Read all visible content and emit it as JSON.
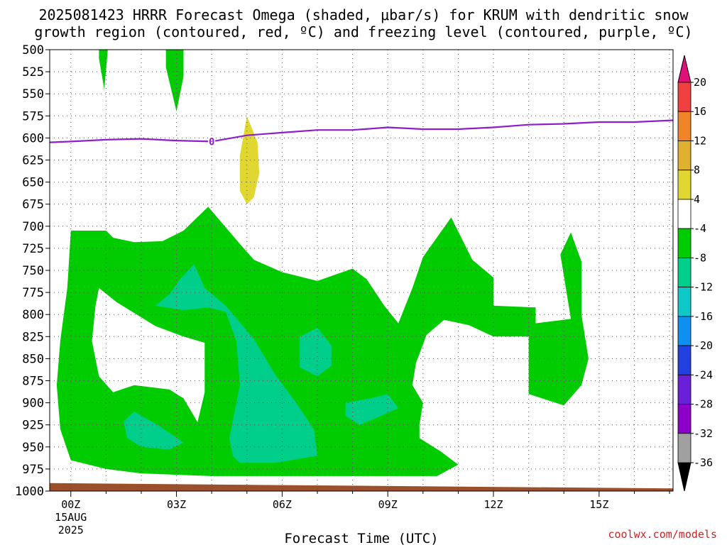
{
  "title": {
    "line1": "2025081423 HRRR Forecast Omega (shaded, μbar/s) for KRUM with dendritic snow",
    "line2": "growth region (contoured, red, ºC) and freezing level (contoured, purple, ºC)"
  },
  "credit": "coolwx.com/models",
  "colors": {
    "ground": "#9b4f2a",
    "freezing_line": "#8e1ec8",
    "green": "#00cc00",
    "teal": "#00cf8c",
    "yellow": "#e0d830"
  },
  "chart_data": {
    "type": "heatmap",
    "title": "2025081423 HRRR Forecast Omega (shaded, μbar/s) for KRUM with dendritic snow growth region (contoured, red, ºC) and freezing level (contoured, purple, ºC)",
    "xlabel": "Forecast Time (UTC)",
    "ylabel": "",
    "x_range_hours": [
      -0.6,
      17.1
    ],
    "y_range_mb": [
      500,
      1000
    ],
    "y_ticks": [
      500,
      525,
      550,
      575,
      600,
      625,
      650,
      675,
      700,
      725,
      750,
      775,
      800,
      825,
      850,
      875,
      900,
      925,
      950,
      975,
      1000
    ],
    "x_ticks": [
      {
        "hour": 0,
        "label": "00Z",
        "sub1": "15AUG",
        "sub2": "2025"
      },
      {
        "hour": 3,
        "label": "03Z"
      },
      {
        "hour": 6,
        "label": "06Z"
      },
      {
        "hour": 9,
        "label": "09Z"
      },
      {
        "hour": 12,
        "label": "12Z"
      },
      {
        "hour": 15,
        "label": "15Z"
      }
    ],
    "grid": true,
    "colorbar": {
      "colors": [
        "#a0a0a0",
        "#8c00c8",
        "#6a1fd8",
        "#2340e0",
        "#0f8ff0",
        "#10c8c8",
        "#00cf8c",
        "#00cc00",
        "#ffffff",
        "#e0d830",
        "#e0b030",
        "#f08428",
        "#f04040"
      ],
      "boundaries": [
        "-36",
        "-32",
        "-28",
        "-24",
        "-20",
        "-16",
        "-12",
        "-8",
        "-4",
        "4",
        "8",
        "12",
        "16",
        "20"
      ],
      "top_arrow": "#e0107a",
      "bottom_arrow": "#000000"
    },
    "freezing_level": {
      "label": "0",
      "label_hour": 4.0,
      "hours": [
        -0.6,
        0,
        1,
        2,
        3,
        4,
        5,
        6,
        7,
        8,
        9,
        10,
        11,
        12,
        13,
        14,
        15,
        16,
        17.1
      ],
      "pressure_mb": [
        605,
        604,
        602,
        601,
        603,
        604,
        597,
        594,
        591,
        591,
        588,
        590,
        590,
        588,
        585,
        584,
        582,
        582,
        580
      ]
    },
    "ground_surface": {
      "hours": [
        -0.6,
        17.1
      ],
      "top_mb": [
        991,
        997
      ]
    },
    "regions": [
      {
        "name": "omega -8 to -4",
        "color": "green",
        "points": [
          [
            0.8,
            500
          ],
          [
            1.05,
            500
          ],
          [
            0.95,
            545
          ],
          [
            0.8,
            510
          ]
        ]
      },
      {
        "name": "omega -8 to -4",
        "color": "green",
        "points": [
          [
            2.7,
            500
          ],
          [
            3.2,
            500
          ],
          [
            3.2,
            530
          ],
          [
            3.0,
            570
          ],
          [
            2.7,
            520
          ]
        ]
      },
      {
        "name": "omega 4 to 8",
        "color": "yellow",
        "points": [
          [
            5.0,
            575
          ],
          [
            5.3,
            605
          ],
          [
            5.35,
            640
          ],
          [
            5.2,
            667
          ],
          [
            5.0,
            675
          ],
          [
            4.8,
            660
          ],
          [
            4.8,
            620
          ],
          [
            4.9,
            598
          ]
        ]
      },
      {
        "name": "omega -8 to -4",
        "color": "green",
        "points": [
          [
            0,
            705
          ],
          [
            1,
            705
          ],
          [
            1.2,
            713
          ],
          [
            1.8,
            718
          ],
          [
            2.6,
            717
          ],
          [
            3.2,
            705
          ],
          [
            3.9,
            678
          ],
          [
            4.8,
            720
          ],
          [
            5.2,
            738
          ],
          [
            6,
            752
          ],
          [
            7,
            762
          ],
          [
            8,
            748
          ],
          [
            8.4,
            760
          ],
          [
            8.9,
            790
          ],
          [
            9.3,
            810
          ],
          [
            9.7,
            770
          ],
          [
            10,
            735
          ],
          [
            10.8,
            690
          ],
          [
            11.4,
            738
          ],
          [
            12,
            758
          ],
          [
            12,
            790
          ],
          [
            13.2,
            792
          ],
          [
            13.2,
            810
          ],
          [
            14.2,
            805
          ],
          [
            13.9,
            732
          ],
          [
            14.2,
            707
          ],
          [
            14.5,
            740
          ],
          [
            14.5,
            800
          ],
          [
            14.7,
            850
          ],
          [
            14.5,
            880
          ],
          [
            14,
            903
          ],
          [
            13,
            890
          ],
          [
            13,
            825
          ],
          [
            12,
            825
          ],
          [
            11.3,
            812
          ],
          [
            10.6,
            806
          ],
          [
            10.1,
            823
          ],
          [
            9.8,
            855
          ],
          [
            9.7,
            880
          ],
          [
            10,
            900
          ],
          [
            9.9,
            925
          ],
          [
            9.9,
            940
          ],
          [
            10.5,
            955
          ],
          [
            11,
            970
          ],
          [
            10.4,
            983
          ],
          [
            9,
            983
          ],
          [
            6,
            983
          ],
          [
            4,
            983
          ],
          [
            2,
            980
          ],
          [
            1,
            975
          ],
          [
            0,
            965
          ],
          [
            -0.3,
            930
          ],
          [
            -0.4,
            880
          ],
          [
            -0.3,
            830
          ],
          [
            -0.1,
            770
          ]
        ],
        "holes": [
          [
            [
              0.8,
              770
            ],
            [
              1.3,
              786
            ],
            [
              2.4,
              813
            ],
            [
              3.2,
              825
            ],
            [
              3.8,
              832
            ],
            [
              3.8,
              888
            ],
            [
              3.6,
              922
            ],
            [
              3.2,
              895
            ],
            [
              2.8,
              885
            ],
            [
              1.8,
              880
            ],
            [
              1.2,
              888
            ],
            [
              0.8,
              870
            ],
            [
              0.6,
              830
            ],
            [
              0.7,
              790
            ]
          ]
        ]
      },
      {
        "name": "omega -12 to -8",
        "color": "teal",
        "points": [
          [
            3.1,
            760
          ],
          [
            3.5,
            743
          ],
          [
            3.8,
            770
          ],
          [
            4.4,
            790
          ],
          [
            5.2,
            828
          ],
          [
            5.8,
            868
          ],
          [
            6.4,
            900
          ],
          [
            6.9,
            930
          ],
          [
            7,
            960
          ],
          [
            5.8,
            968
          ],
          [
            4.8,
            968
          ],
          [
            4.6,
            960
          ],
          [
            4.5,
            940
          ],
          [
            4.8,
            880
          ],
          [
            4.7,
            830
          ],
          [
            4.4,
            797
          ],
          [
            3.9,
            792
          ],
          [
            3.2,
            795
          ],
          [
            2.4,
            790
          ],
          [
            2.8,
            777
          ]
        ]
      },
      {
        "name": "omega -12 to -8",
        "color": "teal",
        "points": [
          [
            6.5,
            825
          ],
          [
            7,
            815
          ],
          [
            7.4,
            835
          ],
          [
            7.4,
            858
          ],
          [
            7,
            870
          ],
          [
            6.5,
            860
          ]
        ]
      },
      {
        "name": "omega -12 to -8",
        "color": "teal",
        "points": [
          [
            7.8,
            900
          ],
          [
            8.5,
            895
          ],
          [
            9,
            890
          ],
          [
            9.3,
            906
          ],
          [
            8.8,
            915
          ],
          [
            8.2,
            925
          ],
          [
            7.8,
            915
          ]
        ]
      },
      {
        "name": "omega -12 to -8",
        "color": "teal",
        "points": [
          [
            1.5,
            921
          ],
          [
            1.8,
            910
          ],
          [
            2.5,
            926
          ],
          [
            3.2,
            945
          ],
          [
            2.8,
            953
          ],
          [
            2,
            950
          ],
          [
            1.6,
            940
          ]
        ]
      }
    ]
  }
}
